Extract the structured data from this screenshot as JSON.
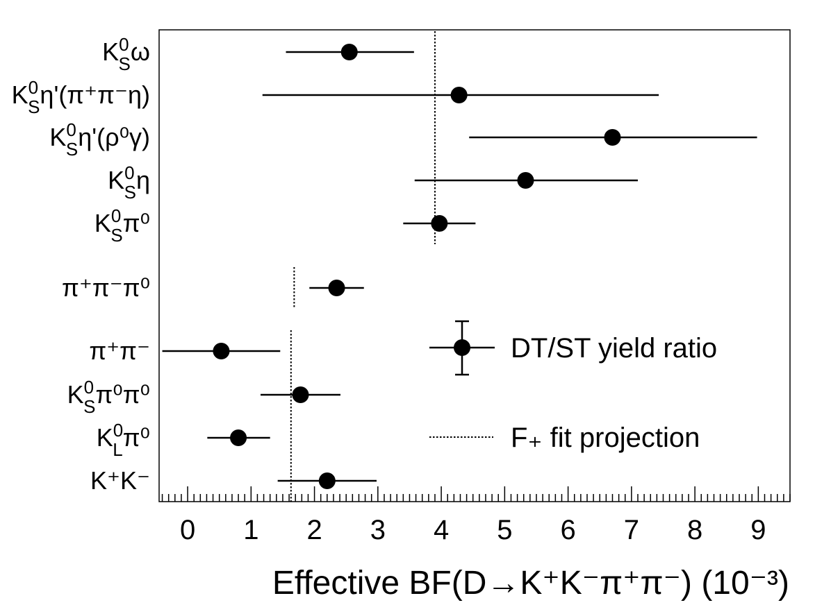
{
  "chart_data": {
    "type": "scatter",
    "title": "",
    "xlabel": "Effective BF(D→K⁺K⁻π⁺π⁻) (10⁻³)",
    "ylabel": "",
    "xlim": [
      -0.45,
      9.5
    ],
    "xticks": [
      "0",
      "1",
      "2",
      "3",
      "4",
      "5",
      "6",
      "7",
      "8",
      "9"
    ],
    "grid": false,
    "legend": {
      "placement": "right",
      "entries": [
        {
          "label": "DT/ST yield ratio",
          "style": "marker-errorbar"
        },
        {
          "label": "F₊ fit projection",
          "style": "dotted-line"
        }
      ]
    },
    "categories": [
      {
        "label": "KS0ω",
        "main": "K",
        "sup": "0",
        "sub": "S",
        "rest": "ω",
        "value": 2.55,
        "err_low": 1.0,
        "err_high": 1.02
      },
      {
        "label": "KS0η'(π+π−η)",
        "main": "K",
        "sup": "0",
        "sub": "S",
        "rest": "η'(π⁺π⁻η)",
        "value": 4.28,
        "err_low": 3.1,
        "err_high": 3.15
      },
      {
        "label": "KS0η'(ρ0γ)",
        "main": "K",
        "sup": "0",
        "sub": "S",
        "rest": "η'(ρ⁰γ)",
        "value": 6.7,
        "err_low": 2.26,
        "err_high": 2.28
      },
      {
        "label": "KS0η",
        "main": "K",
        "sup": "0",
        "sub": "S",
        "rest": "η",
        "value": 5.33,
        "err_low": 1.75,
        "err_high": 1.77
      },
      {
        "label": "KS0π0",
        "main": "K",
        "sup": "0",
        "sub": "S",
        "rest": "π⁰",
        "value": 3.97,
        "err_low": 0.57,
        "err_high": 0.57
      },
      {
        "label": "π+π−π0",
        "main": "π⁺π⁻π⁰",
        "sup": "",
        "sub": "",
        "rest": "",
        "value": 2.35,
        "err_low": 0.43,
        "err_high": 0.43
      },
      {
        "label": "π+π−",
        "main": "π⁺π⁻",
        "sup": "",
        "sub": "",
        "rest": "",
        "value": 0.53,
        "err_low": 0.93,
        "err_high": 0.93
      },
      {
        "label": "KS0π0π0",
        "main": "K",
        "sup": "0",
        "sub": "S",
        "rest": "π⁰π⁰",
        "value": 1.78,
        "err_low": 0.63,
        "err_high": 0.63
      },
      {
        "label": "KL0π0",
        "main": "K",
        "sup": "0",
        "sub": "L",
        "rest": "π⁰",
        "value": 0.8,
        "err_low": 0.49,
        "err_high": 0.5
      },
      {
        "label": "K+K−",
        "main": "K⁺K⁻",
        "sup": "",
        "sub": "",
        "rest": "",
        "value": 2.2,
        "err_low": 0.78,
        "err_high": 0.78
      }
    ],
    "projections": [
      {
        "value": 3.9,
        "from_category": 0,
        "to_category": 4
      },
      {
        "value": 1.68,
        "from_category": 5,
        "to_category": 5
      },
      {
        "value": 1.63,
        "from_category": 6,
        "to_category": 9
      }
    ]
  }
}
